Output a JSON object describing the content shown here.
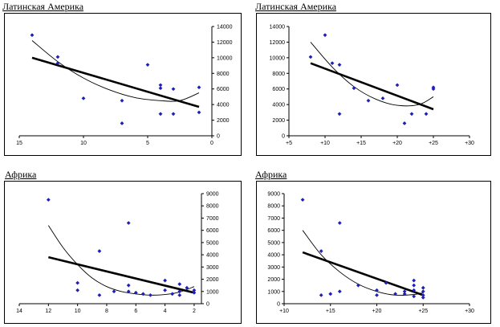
{
  "panels": [
    {
      "title": "Латинская Америка"
    },
    {
      "title": "Латинская Америка"
    },
    {
      "title": "Африка"
    },
    {
      "title": "Африка"
    }
  ],
  "colors": {
    "points": "#1f1fb8",
    "trend": "#000000",
    "curve": "#000000"
  },
  "chart_data": [
    {
      "type": "scatter",
      "title": "Латинская Америка",
      "xlabel": "",
      "ylabel": "",
      "x_reversed": true,
      "xlim": [
        0,
        15
      ],
      "ylim": [
        0,
        14000
      ],
      "y_axis_side": "right",
      "x_ticks": [
        "15",
        "10",
        "5",
        "0"
      ],
      "y_ticks": [
        "0",
        "2000",
        "4000",
        "6000",
        "8000",
        "10000",
        "12000",
        "14000"
      ],
      "points": [
        {
          "x": 14,
          "y": 12900
        },
        {
          "x": 12,
          "y": 10100
        },
        {
          "x": 12,
          "y": 9300
        },
        {
          "x": 10,
          "y": 4800
        },
        {
          "x": 7,
          "y": 4500
        },
        {
          "x": 7,
          "y": 1600
        },
        {
          "x": 5,
          "y": 9100
        },
        {
          "x": 4,
          "y": 6500
        },
        {
          "x": 4,
          "y": 6100
        },
        {
          "x": 4,
          "y": 2800
        },
        {
          "x": 3,
          "y": 6000
        },
        {
          "x": 3,
          "y": 2800
        },
        {
          "x": 1,
          "y": 6200
        },
        {
          "x": 1,
          "y": 3000
        }
      ],
      "linear_trend": [
        [
          14,
          10000
        ],
        [
          1,
          3700
        ]
      ],
      "poly_trend": [
        [
          14,
          12200
        ],
        [
          12,
          9500
        ],
        [
          10,
          7400
        ],
        [
          8,
          5900
        ],
        [
          6,
          4900
        ],
        [
          4,
          4500
        ],
        [
          2.5,
          4500
        ],
        [
          1,
          5500
        ]
      ]
    },
    {
      "type": "scatter",
      "title": "Латинская Америка",
      "xlabel": "",
      "ylabel": "",
      "xlim": [
        5,
        30
      ],
      "ylim": [
        0,
        14000
      ],
      "y_axis_side": "left",
      "x_ticks": [
        "+5",
        "+10",
        "+15",
        "+20",
        "+25",
        "+30"
      ],
      "y_ticks": [
        "0",
        "2000",
        "4000",
        "6000",
        "8000",
        "10000",
        "12000",
        "14000"
      ],
      "points": [
        {
          "x": 8,
          "y": 10100
        },
        {
          "x": 10,
          "y": 12900
        },
        {
          "x": 11,
          "y": 9300
        },
        {
          "x": 12,
          "y": 9100
        },
        {
          "x": 12,
          "y": 2800
        },
        {
          "x": 14,
          "y": 6100
        },
        {
          "x": 16,
          "y": 4500
        },
        {
          "x": 18,
          "y": 4800
        },
        {
          "x": 20,
          "y": 6500
        },
        {
          "x": 21,
          "y": 1600
        },
        {
          "x": 22,
          "y": 2800
        },
        {
          "x": 24,
          "y": 2800
        },
        {
          "x": 25,
          "y": 6200
        },
        {
          "x": 25,
          "y": 6000
        }
      ],
      "linear_trend": [
        [
          8,
          9300
        ],
        [
          25,
          3400
        ]
      ],
      "poly_trend": [
        [
          8,
          12000
        ],
        [
          11,
          8800
        ],
        [
          14,
          6300
        ],
        [
          17,
          4700
        ],
        [
          20,
          3900
        ],
        [
          23,
          4000
        ],
        [
          25,
          5000
        ]
      ]
    },
    {
      "type": "scatter",
      "title": "Африка",
      "xlabel": "",
      "ylabel": "",
      "x_reversed": true,
      "xlim": [
        1.5,
        14
      ],
      "ylim": [
        0,
        9000
      ],
      "y_axis_side": "right",
      "x_ticks": [
        "14",
        "12",
        "10",
        "8",
        "6",
        "4",
        "2"
      ],
      "y_ticks": [
        "0",
        "1000",
        "2000",
        "3000",
        "4000",
        "5000",
        "6000",
        "7000",
        "8000",
        "9000"
      ],
      "points": [
        {
          "x": 12,
          "y": 8500
        },
        {
          "x": 10,
          "y": 1700
        },
        {
          "x": 10,
          "y": 1100
        },
        {
          "x": 8.5,
          "y": 4300
        },
        {
          "x": 8.5,
          "y": 700
        },
        {
          "x": 7.5,
          "y": 1000
        },
        {
          "x": 6.5,
          "y": 6600
        },
        {
          "x": 6.5,
          "y": 1500
        },
        {
          "x": 6.5,
          "y": 1000
        },
        {
          "x": 6,
          "y": 900
        },
        {
          "x": 5.5,
          "y": 800
        },
        {
          "x": 5,
          "y": 700
        },
        {
          "x": 4,
          "y": 1900
        },
        {
          "x": 4,
          "y": 1100
        },
        {
          "x": 3.5,
          "y": 800
        },
        {
          "x": 3,
          "y": 1600
        },
        {
          "x": 3,
          "y": 1000
        },
        {
          "x": 3,
          "y": 700
        },
        {
          "x": 2.5,
          "y": 1300
        },
        {
          "x": 2,
          "y": 1100
        },
        {
          "x": 2,
          "y": 900
        }
      ],
      "linear_trend": [
        [
          12,
          3800
        ],
        [
          2,
          900
        ]
      ],
      "poly_trend": [
        [
          12,
          6400
        ],
        [
          11,
          4600
        ],
        [
          10,
          3200
        ],
        [
          9,
          2100
        ],
        [
          8,
          1400
        ],
        [
          7,
          1000
        ],
        [
          6,
          800
        ],
        [
          5,
          700
        ],
        [
          4,
          750
        ],
        [
          3,
          950
        ],
        [
          2,
          1400
        ]
      ]
    },
    {
      "type": "scatter",
      "title": "Африка",
      "xlabel": "",
      "ylabel": "",
      "xlim": [
        10,
        30
      ],
      "ylim": [
        0,
        9000
      ],
      "y_axis_side": "left",
      "x_ticks": [
        "+10",
        "+15",
        "+20",
        "+25",
        "+30"
      ],
      "y_ticks": [
        "0",
        "1000",
        "2000",
        "3000",
        "4000",
        "5000",
        "6000",
        "7000",
        "8000",
        "9000"
      ],
      "points": [
        {
          "x": 12,
          "y": 8500
        },
        {
          "x": 14,
          "y": 4300
        },
        {
          "x": 14,
          "y": 700
        },
        {
          "x": 15,
          "y": 800
        },
        {
          "x": 16,
          "y": 6600
        },
        {
          "x": 16,
          "y": 1000
        },
        {
          "x": 18,
          "y": 1500
        },
        {
          "x": 20,
          "y": 1100
        },
        {
          "x": 20,
          "y": 700
        },
        {
          "x": 21,
          "y": 1700
        },
        {
          "x": 22,
          "y": 800
        },
        {
          "x": 23,
          "y": 1000
        },
        {
          "x": 23,
          "y": 800
        },
        {
          "x": 24,
          "y": 1900
        },
        {
          "x": 24,
          "y": 1500
        },
        {
          "x": 24,
          "y": 1100
        },
        {
          "x": 24,
          "y": 600
        },
        {
          "x": 25,
          "y": 1300
        },
        {
          "x": 25,
          "y": 1000
        },
        {
          "x": 25,
          "y": 700
        },
        {
          "x": 25,
          "y": 500
        }
      ],
      "linear_trend": [
        [
          12,
          4200
        ],
        [
          25,
          700
        ]
      ],
      "poly_trend": [
        [
          12,
          6000
        ],
        [
          14,
          4000
        ],
        [
          16,
          2600
        ],
        [
          18,
          1600
        ],
        [
          20,
          1000
        ],
        [
          22,
          700
        ],
        [
          24,
          750
        ],
        [
          25,
          900
        ]
      ]
    }
  ]
}
